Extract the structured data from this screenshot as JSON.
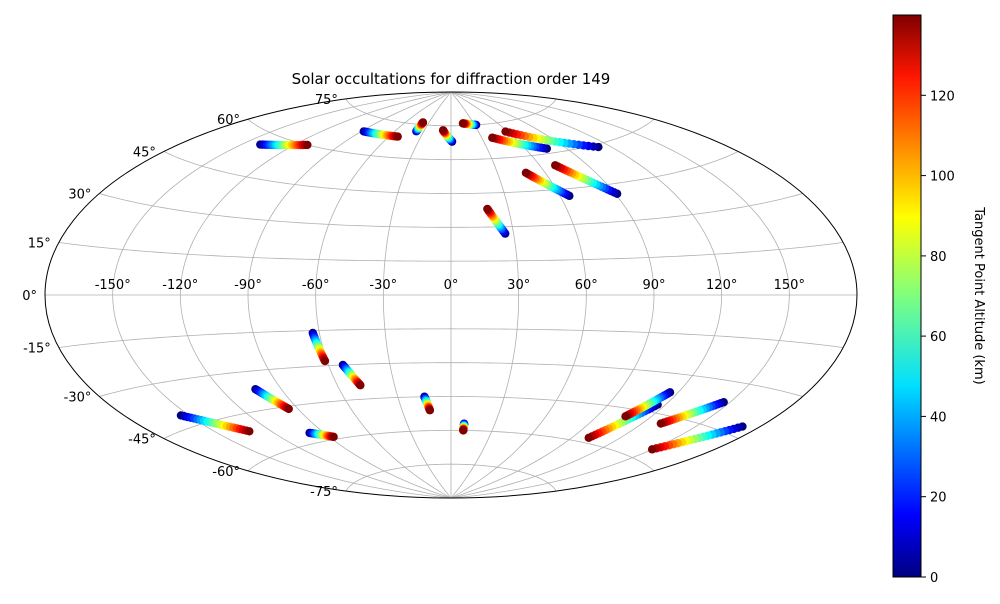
{
  "chart_data": {
    "type": "scatter",
    "projection": "aitoff",
    "title": "Solar occultations for diffraction order 149",
    "xlabel": "",
    "ylabel": "",
    "grid": true,
    "lon_ticks": [
      -150,
      -120,
      -90,
      -60,
      -30,
      0,
      30,
      60,
      90,
      120,
      150
    ],
    "lat_ticks": [
      -75,
      -60,
      -45,
      -30,
      -15,
      0,
      15,
      30,
      45,
      60,
      75
    ],
    "lon_tick_labels": [
      "-150°",
      "-120°",
      "-90°",
      "-60°",
      "-30°",
      "0°",
      "30°",
      "60°",
      "90°",
      "120°",
      "150°"
    ],
    "lat_tick_labels": [
      "-75°",
      "-60°",
      "-45°",
      "-30°",
      "-15°",
      "0°",
      "15°",
      "30°",
      "45°",
      "60°",
      "75°"
    ],
    "colorbar": {
      "label": "Tangent Point Altitude (km)",
      "colormap": "jet",
      "vmin": 0,
      "vmax": 140,
      "ticks": [
        0,
        20,
        40,
        60,
        80,
        100,
        120
      ],
      "tick_labels": [
        "0",
        "20",
        "40",
        "60",
        "80",
        "100",
        "120"
      ]
    },
    "series": [
      {
        "altitude_range": [
          0,
          140
        ],
        "start": [
          -140,
          56
        ],
        "end": [
          -112,
          60
        ]
      },
      {
        "altitude_range": [
          0,
          140
        ],
        "start": [
          -88,
          69
        ],
        "end": [
          -52,
          69
        ]
      },
      {
        "altitude_range": [
          0,
          140
        ],
        "start": [
          -38,
          72
        ],
        "end": [
          -38,
          76
        ]
      },
      {
        "altitude_range": [
          0,
          140
        ],
        "start": [
          1,
          68
        ],
        "end": [
          -9,
          73
        ]
      },
      {
        "altitude_range": [
          0,
          140
        ],
        "start": [
          32,
          75
        ],
        "end": [
          16,
          76
        ]
      },
      {
        "altitude_range": [
          0,
          140
        ],
        "start": [
          76,
          62
        ],
        "end": [
          40,
          69
        ]
      },
      {
        "altitude_range": [
          0,
          140
        ],
        "start": [
          112,
          59
        ],
        "end": [
          58,
          71
        ]
      },
      {
        "altitude_range": [
          0,
          140
        ],
        "start": [
          26,
          27
        ],
        "end": [
          19,
          38
        ]
      },
      {
        "altitude_range": [
          0,
          140
        ],
        "start": [
          65,
          42
        ],
        "end": [
          48,
          53
        ]
      },
      {
        "altitude_range": [
          0,
          140
        ],
        "start": [
          91,
          41
        ],
        "end": [
          70,
          55
        ]
      },
      {
        "altitude_range": [
          0,
          140
        ],
        "start": [
          -154,
          -41
        ],
        "end": [
          -132,
          -51
        ]
      },
      {
        "altitude_range": [
          0,
          140
        ],
        "start": [
          -103,
          -37
        ],
        "end": [
          -95,
          -46
        ]
      },
      {
        "altitude_range": [
          0,
          140
        ],
        "start": [
          -99,
          -56
        ],
        "end": [
          -87,
          -59
        ]
      },
      {
        "altitude_range": [
          0,
          140
        ],
        "start": [
          -63,
          -16
        ],
        "end": [
          -61,
          -28
        ]
      },
      {
        "altitude_range": [
          0,
          140
        ],
        "start": [
          -53,
          -30
        ],
        "end": [
          -48,
          -39
        ]
      },
      {
        "altitude_range": [
          0,
          140
        ],
        "start": [
          -15,
          -45
        ],
        "end": [
          -13,
          -51
        ]
      },
      {
        "altitude_range": [
          0,
          140
        ],
        "start": [
          9,
          -57
        ],
        "end": [
          9,
          -60
        ]
      },
      {
        "altitude_range": [
          0,
          140
        ],
        "start": [
          116,
          -42
        ],
        "end": [
          101,
          -58
        ]
      },
      {
        "altitude_range": [
          0,
          140
        ],
        "start": [
          116,
          -37
        ],
        "end": [
          106,
          -48
        ]
      },
      {
        "altitude_range": [
          0,
          140
        ],
        "start": [
          147,
          -37
        ],
        "end": [
          130,
          -48
        ]
      },
      {
        "altitude_range": [
          0,
          140
        ],
        "start": [
          172,
          -42
        ],
        "end": [
          150,
          -56
        ]
      }
    ]
  }
}
